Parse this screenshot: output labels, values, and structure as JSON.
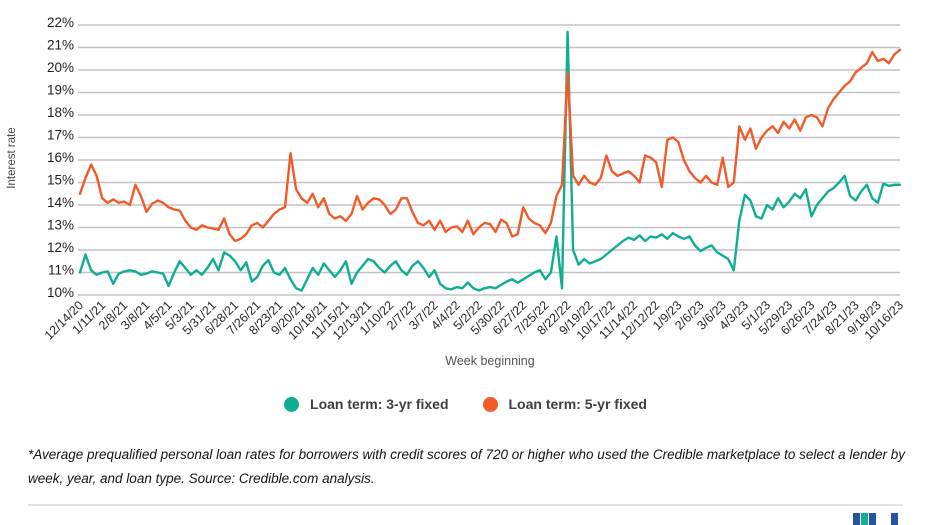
{
  "chart_data": {
    "type": "line",
    "xlabel": "Week beginning",
    "ylabel": "Interest rate",
    "ylim": [
      10,
      22
    ],
    "grid": true,
    "legend_position": "bottom",
    "y_tick_labels": [
      "22%",
      "21%",
      "20%",
      "19%",
      "18%",
      "17%",
      "16%",
      "15%",
      "14%",
      "13%",
      "12%",
      "11%",
      "10%"
    ],
    "x_tick_labels": [
      "12/14/20",
      "1/11/21",
      "2/8/21",
      "3/8/21",
      "4/5/21",
      "5/3/21",
      "5/31/21",
      "6/28/21",
      "7/26/21",
      "8/23/21",
      "9/20/21",
      "10/18/21",
      "11/15/21",
      "12/13/21",
      "1/10/22",
      "2/7/22",
      "3/7/22",
      "4/4/22",
      "5/2/22",
      "5/30/22",
      "6/27/22",
      "7/25/22",
      "8/22/22",
      "9/19/22",
      "10/17/22",
      "11/14/22",
      "12/12/22",
      "1/9/23",
      "2/6/23",
      "3/6/23",
      "4/3/23",
      "5/1/23",
      "5/29/23",
      "6/26/23",
      "7/24/23",
      "8/21/23",
      "9/18/23",
      "10/16/23"
    ],
    "x_note": "weekly data points; one tick label every 4 weeks",
    "series": [
      {
        "name": "Loan term: 3-yr fixed",
        "color": "#0fae93",
        "values": [
          11.0,
          11.8,
          11.1,
          10.9,
          11.0,
          11.05,
          10.5,
          10.95,
          11.05,
          11.1,
          11.05,
          10.9,
          10.95,
          11.05,
          11.0,
          10.95,
          10.4,
          11.0,
          11.5,
          11.2,
          10.9,
          11.1,
          10.9,
          11.2,
          11.6,
          11.1,
          11.9,
          11.75,
          11.5,
          11.1,
          11.45,
          10.6,
          10.8,
          11.3,
          11.55,
          11.0,
          10.9,
          11.2,
          10.7,
          10.3,
          10.2,
          10.7,
          11.2,
          10.9,
          11.4,
          11.1,
          10.8,
          11.1,
          11.5,
          10.5,
          11.0,
          11.3,
          11.6,
          11.5,
          11.2,
          11.0,
          11.3,
          11.5,
          11.1,
          10.9,
          11.3,
          11.5,
          11.2,
          10.8,
          11.1,
          10.5,
          10.3,
          10.25,
          10.35,
          10.3,
          10.55,
          10.3,
          10.2,
          10.3,
          10.35,
          10.3,
          10.45,
          10.6,
          10.7,
          10.55,
          10.7,
          10.85,
          11.0,
          11.1,
          10.7,
          11.0,
          12.6,
          10.3,
          21.7,
          12.0,
          11.35,
          11.6,
          11.4,
          11.5,
          11.6,
          11.8,
          12.0,
          12.2,
          12.4,
          12.55,
          12.45,
          12.65,
          12.4,
          12.6,
          12.55,
          12.7,
          12.5,
          12.75,
          12.6,
          12.5,
          12.6,
          12.2,
          11.95,
          12.1,
          12.2,
          11.9,
          11.75,
          11.6,
          11.1,
          13.3,
          14.45,
          14.2,
          13.5,
          13.4,
          14.0,
          13.8,
          14.3,
          13.9,
          14.15,
          14.5,
          14.3,
          14.7,
          13.5,
          14.0,
          14.3,
          14.6,
          14.75,
          15.0,
          15.3,
          14.4,
          14.2,
          14.6,
          14.9,
          14.3,
          14.1,
          14.95,
          14.85,
          14.9,
          14.9
        ]
      },
      {
        "name": "Loan term: 5-yr fixed",
        "color": "#f15b29",
        "values": [
          14.5,
          15.2,
          15.8,
          15.3,
          14.3,
          14.1,
          14.25,
          14.1,
          14.15,
          14.0,
          14.9,
          14.4,
          13.7,
          14.05,
          14.2,
          14.1,
          13.9,
          13.8,
          13.75,
          13.3,
          13.0,
          12.9,
          13.1,
          13.0,
          12.95,
          12.9,
          13.4,
          12.7,
          12.4,
          12.5,
          12.7,
          13.1,
          13.2,
          13.0,
          13.3,
          13.6,
          13.8,
          13.9,
          16.3,
          14.7,
          14.3,
          14.1,
          14.5,
          13.9,
          14.3,
          13.6,
          13.4,
          13.5,
          13.3,
          13.6,
          14.4,
          13.8,
          14.1,
          14.3,
          14.25,
          14.0,
          13.6,
          13.8,
          14.3,
          14.3,
          13.7,
          13.2,
          13.1,
          13.3,
          12.9,
          13.3,
          12.8,
          13.0,
          13.05,
          12.8,
          13.3,
          12.7,
          13.0,
          13.2,
          13.15,
          12.8,
          13.35,
          13.2,
          12.6,
          12.7,
          13.9,
          13.4,
          13.2,
          13.1,
          12.75,
          13.2,
          14.4,
          14.9,
          19.9,
          15.3,
          14.9,
          15.3,
          15.0,
          14.9,
          15.2,
          16.2,
          15.5,
          15.3,
          15.4,
          15.5,
          15.3,
          15.0,
          16.2,
          16.1,
          15.9,
          14.8,
          16.9,
          17.0,
          16.8,
          16.0,
          15.5,
          15.2,
          15.0,
          15.3,
          15.0,
          14.9,
          16.1,
          14.8,
          15.0,
          17.5,
          16.9,
          17.4,
          16.5,
          17.0,
          17.3,
          17.5,
          17.2,
          17.7,
          17.4,
          17.8,
          17.3,
          17.9,
          18.0,
          17.9,
          17.5,
          18.3,
          18.7,
          19.0,
          19.3,
          19.5,
          19.9,
          20.1,
          20.3,
          20.8,
          20.4,
          20.5,
          20.3,
          20.7,
          20.9
        ]
      }
    ]
  },
  "legend": {
    "items": [
      {
        "label": "Loan term: 3-yr fixed",
        "color": "#0fae93"
      },
      {
        "label": "Loan term: 5-yr fixed",
        "color": "#f15b29"
      }
    ]
  },
  "footnote": "*Average prequalified personal loan rates for borrowers with credit scores of 720 or higher who used the Credible marketplace to select a lender by week, year, and loan type. Source: Credible.com analysis.",
  "logo": {
    "blocks": [
      {
        "color": "#2355a4"
      },
      {
        "color": "#14ae96"
      },
      {
        "color": "#2355a4"
      },
      {
        "color": "#2355a4"
      }
    ]
  },
  "colors": {
    "gridline": "#c3c3c3",
    "tick_text": "#1f1f1f",
    "axis_title_text": "#555555",
    "background": "#ffffff"
  }
}
